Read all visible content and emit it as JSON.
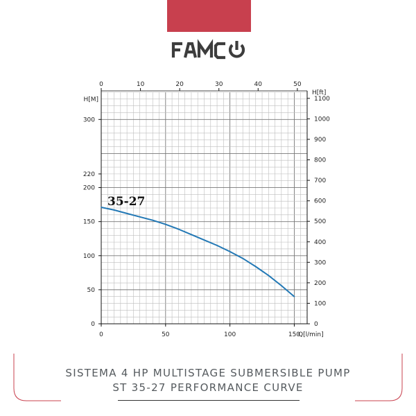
{
  "brand": {
    "name": "FAMCO",
    "accent_color": "#c8404e",
    "logo_color": "#3d3d3d"
  },
  "caption": {
    "line1": "SISTEMA 4 HP MULTISTAGE SUBMERSIBLE PUMP",
    "line2": "ST 35-27 PERFORMANCE CURVE"
  },
  "chart_data": {
    "type": "line",
    "grid": true,
    "series": [
      {
        "name": "35-27",
        "color": "#2278b5",
        "x": [
          0,
          10,
          20,
          30,
          40,
          50,
          60,
          70,
          80,
          90,
          100,
          110,
          120,
          130,
          140,
          150
        ],
        "y": [
          171,
          167,
          162,
          157,
          152,
          146,
          139,
          131,
          123,
          115,
          106,
          96,
          84,
          71,
          56,
          40
        ]
      }
    ],
    "x_axis": {
      "label": "Q[l/min]",
      "range": [
        0,
        160
      ],
      "ticks": [
        0,
        50,
        100,
        150
      ],
      "tick_labels": [
        "0",
        "50",
        "100",
        "150"
      ]
    },
    "x_axis_top": {
      "label": "",
      "range": [
        0,
        52.5
      ],
      "ticks": [
        0,
        10,
        20,
        30,
        40,
        50
      ],
      "tick_labels": [
        "0",
        "10",
        "20",
        "30",
        "40",
        "50"
      ]
    },
    "y_axis_left": {
      "label": "H[M]",
      "range": [
        0,
        340
      ],
      "ticks": [
        0,
        50,
        100,
        150,
        200,
        220,
        300
      ],
      "tick_labels": [
        "0",
        "50",
        "100",
        "150",
        "200",
        "220",
        "300"
      ]
    },
    "y_axis_right": {
      "label": "H[ft]",
      "range": [
        0,
        1130
      ],
      "ticks": [
        0,
        100,
        200,
        300,
        400,
        500,
        600,
        700,
        800,
        900,
        1000,
        1100
      ],
      "tick_labels": [
        "0",
        "100",
        "200",
        "300",
        "400",
        "500",
        "600",
        "700",
        "800",
        "900",
        "1000",
        "1100"
      ]
    }
  }
}
